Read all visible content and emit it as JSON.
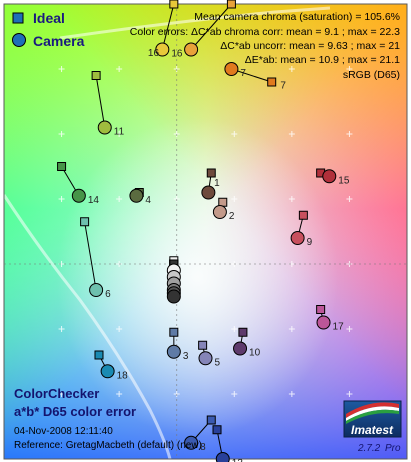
{
  "chart_data": {
    "type": "scatter",
    "title": "",
    "legend": [
      {
        "name": "Ideal",
        "marker": "square",
        "color": "#1e6fb8"
      },
      {
        "name": "Camera",
        "marker": "circle",
        "color": "#1e6fb8"
      }
    ],
    "legend_position": "top-left",
    "stats": [
      "Mean camera chroma (saturation) = 105.6%",
      "Color errors:  ΔC*ab chroma corr:  mean = 9.1 ;  max = 22.3",
      "ΔC*ab uncorr:  mean = 9.63 ;  max = 21",
      "ΔE*ab:  mean = 10.9 ;  max = 21.1",
      "sRGB (D65)"
    ],
    "footer": {
      "title_line1": "ColorChecker",
      "title_line2": "a*b* D65 color error",
      "timestamp": "04-Nov-2008 12:11:40",
      "reference": "Reference: GretagMacbeth (default) (new)"
    },
    "logo": {
      "name": "Imatest",
      "version": "2.7.2",
      "edition": "Pro"
    },
    "axes": {
      "xlabel": "",
      "ylabel": "",
      "xlim": [
        -60,
        80
      ],
      "ylim": [
        -60,
        80
      ],
      "grid": true
    },
    "patches": [
      {
        "id": "1",
        "ideal": [
          12,
          28
        ],
        "camera": [
          11,
          22
        ],
        "ideal_color": "#6e4a3c",
        "camera_color": "#6e4a3c",
        "label": ""
      },
      {
        "id": "2",
        "ideal": [
          16,
          19
        ],
        "camera": [
          15,
          16
        ],
        "ideal_color": "#c39a8a",
        "camera_color": "#c39a8a",
        "label": "2"
      },
      {
        "id": "3",
        "ideal": [
          -1,
          -21
        ],
        "camera": [
          -1,
          -27
        ],
        "ideal_color": "#5f7ba6",
        "camera_color": "#5f7ba6",
        "label": "3"
      },
      {
        "id": "4",
        "ideal": [
          -13,
          22
        ],
        "camera": [
          -14,
          21
        ],
        "ideal_color": "#5b6b40",
        "camera_color": "#5b6b40",
        "label": "4"
      },
      {
        "id": "5",
        "ideal": [
          9,
          -25
        ],
        "camera": [
          10,
          -29
        ],
        "ideal_color": "#8585b8",
        "camera_color": "#8585b8",
        "label": "5"
      },
      {
        "id": "6",
        "ideal": [
          -32,
          13
        ],
        "camera": [
          -28,
          -8
        ],
        "ideal_color": "#6ec0ae",
        "camera_color": "#6ec0ae",
        "label": "6"
      },
      {
        "id": "7",
        "ideal": [
          33,
          56
        ],
        "camera": [
          19,
          60
        ],
        "ideal_color": "#e07a1e",
        "camera_color": "#e07a1e",
        "label": "7"
      },
      {
        "id": "8",
        "ideal": [
          12,
          -48
        ],
        "camera": [
          5,
          -55
        ],
        "ideal_color": "#3a5ab0",
        "camera_color": "#3a5ab0",
        "label": "8"
      },
      {
        "id": "9",
        "ideal": [
          44,
          15
        ],
        "camera": [
          42,
          8
        ],
        "ideal_color": "#c8505e",
        "camera_color": "#c8505e",
        "label": "9"
      },
      {
        "id": "10",
        "ideal": [
          23,
          -21
        ],
        "camera": [
          22,
          -26
        ],
        "ideal_color": "#5e3a6c",
        "camera_color": "#5e3a6c",
        "label": "10"
      },
      {
        "id": "11",
        "ideal": [
          -28,
          58
        ],
        "camera": [
          -25,
          42
        ],
        "ideal_color": "#a0bc3e",
        "camera_color": "#a0bc3e",
        "label": "11"
      },
      {
        "id": "12",
        "ideal": [
          19,
          80
        ],
        "camera": [
          5,
          66
        ],
        "ideal_color": "#e8a23a",
        "camera_color": "#e8a23a",
        "label": ""
      },
      {
        "id": "13",
        "ideal": [
          14,
          -51
        ],
        "camera": [
          16,
          -60
        ],
        "ideal_color": "#28409a",
        "camera_color": "#28409a",
        "label": "13"
      },
      {
        "id": "14",
        "ideal": [
          -40,
          30
        ],
        "camera": [
          -34,
          21
        ],
        "ideal_color": "#469448",
        "camera_color": "#469448",
        "label": "14"
      },
      {
        "id": "15",
        "ideal": [
          50,
          28
        ],
        "camera": [
          53,
          27
        ],
        "ideal_color": "#b0303a",
        "camera_color": "#b0303a",
        "label": "15"
      },
      {
        "id": "16",
        "ideal": [
          -1,
          80
        ],
        "camera": [
          -5,
          66
        ],
        "ideal_color": "#e8c83a",
        "camera_color": "#e8c83a",
        "label": "16"
      },
      {
        "id": "17",
        "ideal": [
          50,
          -14
        ],
        "camera": [
          51,
          -18
        ],
        "ideal_color": "#bc5698",
        "camera_color": "#bc5698",
        "label": "17"
      },
      {
        "id": "18",
        "ideal": [
          -27,
          -28
        ],
        "camera": [
          -24,
          -33
        ],
        "ideal_color": "#1a8ab2",
        "camera_color": "#1a8ab2",
        "label": "18"
      },
      {
        "id": "19",
        "ideal": [
          -1,
          1
        ],
        "camera": [
          -1,
          -2
        ],
        "ideal_color": "#f2f2f2",
        "camera_color": "#f2f2f2",
        "label": ""
      },
      {
        "id": "20",
        "ideal": [
          -1,
          0
        ],
        "camera": [
          -1,
          -4
        ],
        "ideal_color": "#c8c8c8",
        "camera_color": "#c8c8c8",
        "label": ""
      },
      {
        "id": "21",
        "ideal": [
          -1,
          0
        ],
        "camera": [
          -1,
          -6
        ],
        "ideal_color": "#a0a0a0",
        "camera_color": "#a0a0a0",
        "label": ""
      },
      {
        "id": "22",
        "ideal": [
          -1,
          0
        ],
        "camera": [
          -1,
          -8
        ],
        "ideal_color": "#7a7a7a",
        "camera_color": "#7a7a7a",
        "label": ""
      },
      {
        "id": "23",
        "ideal": [
          -1,
          0
        ],
        "camera": [
          -1,
          -9
        ],
        "ideal_color": "#555555",
        "camera_color": "#555555",
        "label": ""
      },
      {
        "id": "24",
        "ideal": [
          -1,
          0
        ],
        "camera": [
          -1,
          -10
        ],
        "ideal_color": "#333333",
        "camera_color": "#333333",
        "label": ""
      }
    ],
    "patch_labels": [
      {
        "text": "1",
        "at": [
          13,
          24
        ]
      },
      {
        "text": "16",
        "at": [
          -10,
          64
        ]
      },
      {
        "text": "7",
        "at": [
          36,
          54
        ]
      }
    ]
  }
}
